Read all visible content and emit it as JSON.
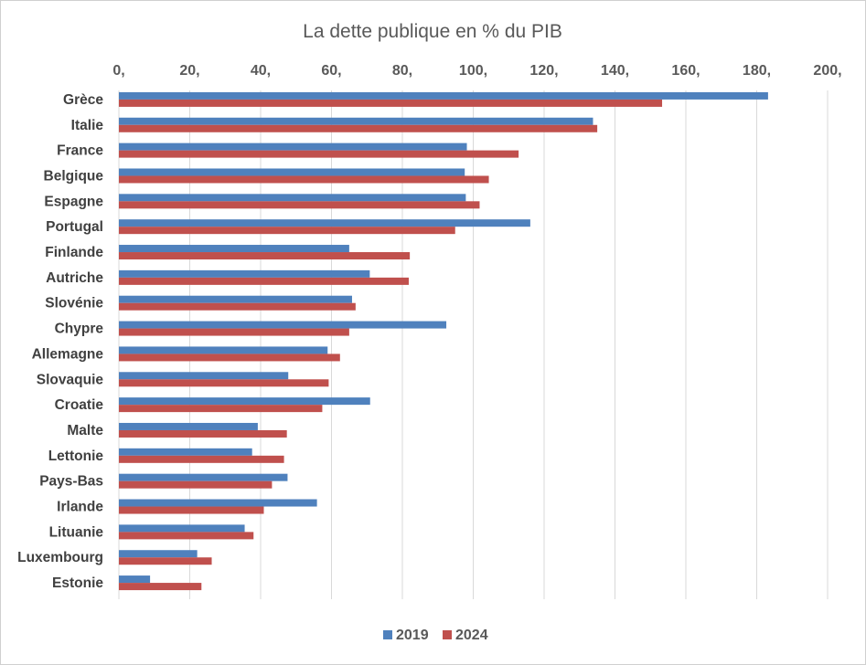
{
  "colors": {
    "series_2019": "#4f81bd",
    "series_2024": "#c0504d",
    "grid": "#d9d9d9",
    "text": "#595959"
  },
  "chart_data": {
    "type": "bar",
    "orientation": "horizontal",
    "title": "La dette publique en % du PIB",
    "xlim": [
      0,
      200
    ],
    "x_ticks": [
      0,
      20,
      40,
      60,
      80,
      100,
      120,
      140,
      160,
      180,
      200
    ],
    "x_tick_labels": [
      "0,",
      "20,",
      "40,",
      "60,",
      "80,",
      "100,",
      "120,",
      "140,",
      "160,",
      "180,",
      "200,"
    ],
    "x_axis_position": "top",
    "grid": true,
    "legend_position": "bottom",
    "categories": [
      "Grèce",
      "Italie",
      "France",
      "Belgique",
      "Espagne",
      "Portugal",
      "Finlande",
      "Autriche",
      "Slovénie",
      "Chypre",
      "Allemagne",
      "Slovaquie",
      "Croatie",
      "Malte",
      "Lettonie",
      "Pays-Bas",
      "Irlande",
      "Lituanie",
      "Luxembourg",
      "Estonie"
    ],
    "series": [
      {
        "name": "2019",
        "color": "#4f81bd",
        "values": [
          183.2,
          133.8,
          98.2,
          97.6,
          97.9,
          116.1,
          65.0,
          70.8,
          65.8,
          92.4,
          58.9,
          47.8,
          70.9,
          39.2,
          37.6,
          47.6,
          55.9,
          35.5,
          22.1,
          8.8
        ]
      },
      {
        "name": "2024",
        "color": "#c0504d",
        "values": [
          153.3,
          135.0,
          112.8,
          104.4,
          101.8,
          94.9,
          82.1,
          81.8,
          66.8,
          65.0,
          62.4,
          59.2,
          57.4,
          47.4,
          46.6,
          43.2,
          40.9,
          38.0,
          26.2,
          23.3
        ]
      }
    ]
  }
}
